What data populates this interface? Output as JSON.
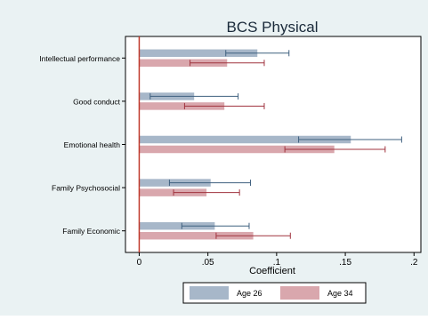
{
  "chart_data": {
    "type": "bar",
    "orientation": "horizontal",
    "title": "BCS Physical",
    "xlabel": "Coefficient",
    "ylabel": "",
    "xlim": [
      -0.01,
      0.205
    ],
    "x_ticks": [
      0,
      0.05,
      0.1,
      0.15,
      0.2
    ],
    "x_tick_labels": [
      "0",
      ".05",
      ".1",
      ".15",
      ".2"
    ],
    "grid": false,
    "legend_position": "bottom",
    "categories": [
      "Intellectual performance",
      "Good conduct",
      "Emotional health",
      "Family Psychosocial",
      "Family Economic"
    ],
    "series": [
      {
        "name": "Age 26",
        "color": "#a7b7c9",
        "error_color": "#3f607f",
        "values": [
          0.086,
          0.04,
          0.154,
          0.052,
          0.055
        ],
        "ci_low": [
          0.063,
          0.008,
          0.116,
          0.022,
          0.031
        ],
        "ci_high": [
          0.109,
          0.072,
          0.191,
          0.081,
          0.08
        ]
      },
      {
        "name": "Age 34",
        "color": "#d9a7ad",
        "error_color": "#a0333e",
        "values": [
          0.064,
          0.062,
          0.142,
          0.049,
          0.083
        ],
        "ci_low": [
          0.037,
          0.033,
          0.106,
          0.025,
          0.056
        ],
        "ci_high": [
          0.091,
          0.091,
          0.179,
          0.073,
          0.11
        ]
      }
    ]
  }
}
